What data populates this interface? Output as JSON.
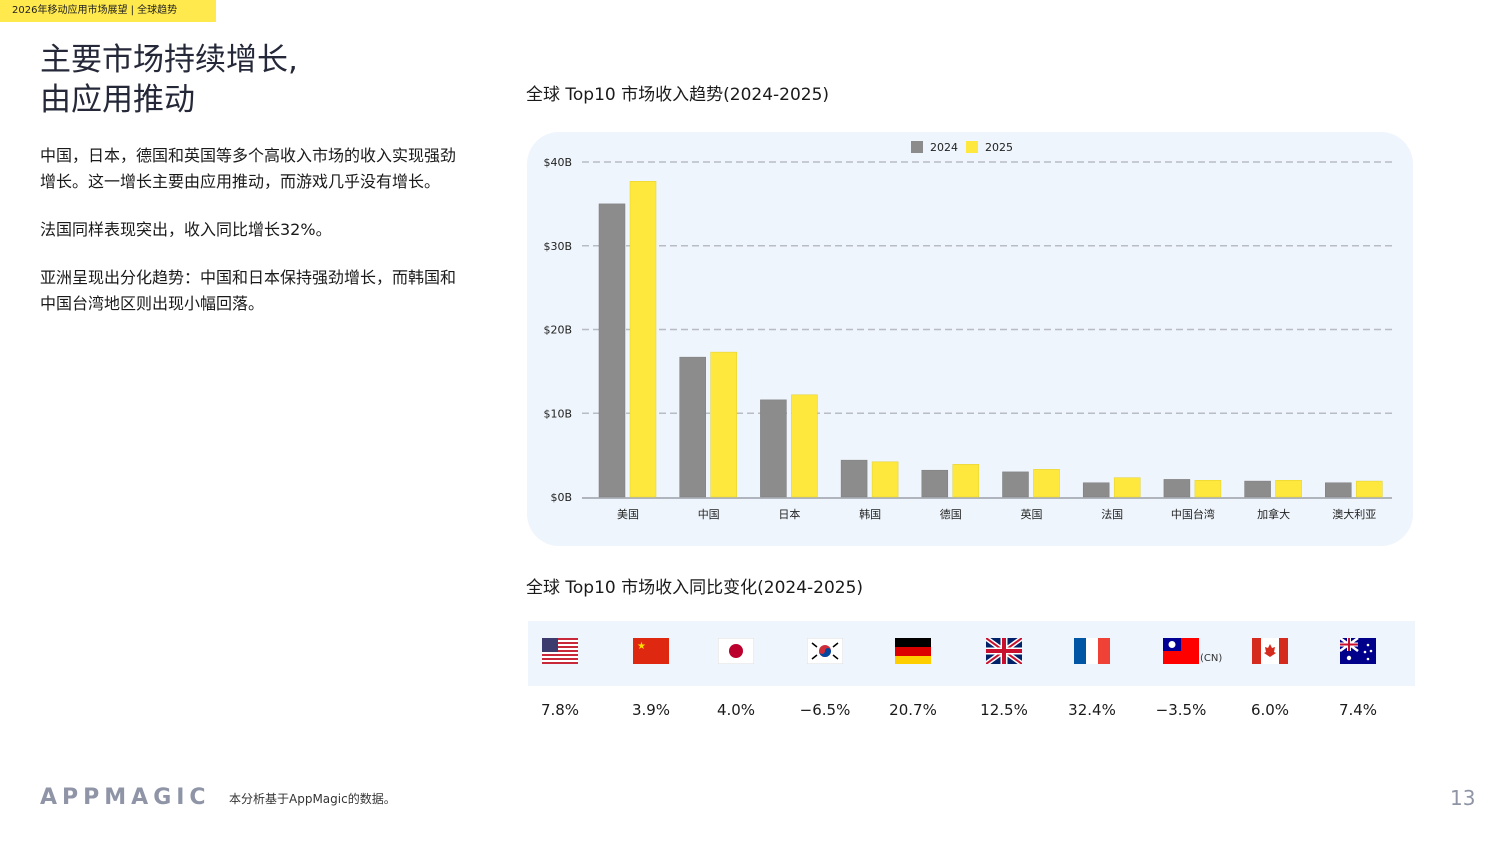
{
  "header_tag": "2026年移动应用市场展望 | 全球趋势",
  "title_line1": "主要市场持续增长,",
  "title_line2": "由应用推动",
  "paragraphs": [
    "中国，日本，德国和英国等多个高收入市场的收入实现强劲增长。这一增长主要由应用推动，而游戏几乎没有增长。",
    "法国同样表现突出，收入同比增长32%。",
    "亚洲呈现出分化趋势：中国和日本保持强劲增长，而韩国和中国台湾地区则出现小幅回落。"
  ],
  "chart_data": [
    {
      "type": "bar",
      "title": "全球 Top10 市场收入趋势(2024-2025)",
      "categories": [
        "美国",
        "中国",
        "日本",
        "韩国",
        "德国",
        "英国",
        "法国",
        "中国台湾",
        "加拿大",
        "澳大利亚"
      ],
      "series": [
        {
          "name": "2024",
          "color": "#8c8c8c",
          "values": [
            35.0,
            16.7,
            11.6,
            4.4,
            3.2,
            3.0,
            1.7,
            2.1,
            1.9,
            1.7
          ]
        },
        {
          "name": "2025",
          "color": "#ffe83d",
          "values": [
            37.7,
            17.3,
            12.2,
            4.2,
            3.9,
            3.3,
            2.3,
            2.0,
            2.0,
            1.9
          ]
        }
      ],
      "yticks": [
        "$0B",
        "$10B",
        "$20B",
        "$30B",
        "$40B"
      ],
      "ylim": [
        0,
        40
      ],
      "unit": "B USD",
      "grid": true,
      "legend": "top"
    },
    {
      "type": "table",
      "title": "全球 Top10 市场收入同比变化(2024-2025)",
      "flags": [
        "us-flag-icon",
        "china-flag-icon",
        "japan-flag-icon",
        "korea-flag-icon",
        "germany-flag-icon",
        "uk-flag-icon",
        "france-flag-icon",
        "taiwan-flag-icon",
        "canada-flag-icon",
        "australia-flag-icon"
      ],
      "taiwan_suffix": "(CN)",
      "values": [
        "7.8%",
        "3.9%",
        "4.0%",
        "-6.5%",
        "20.7%",
        "12.5%",
        "32.4%",
        "-3.5%",
        "6.0%",
        "7.4%"
      ]
    }
  ],
  "footer": {
    "logo": "APPMAGIC",
    "source": "本分析基于AppMagic的数据。",
    "page": "13"
  }
}
